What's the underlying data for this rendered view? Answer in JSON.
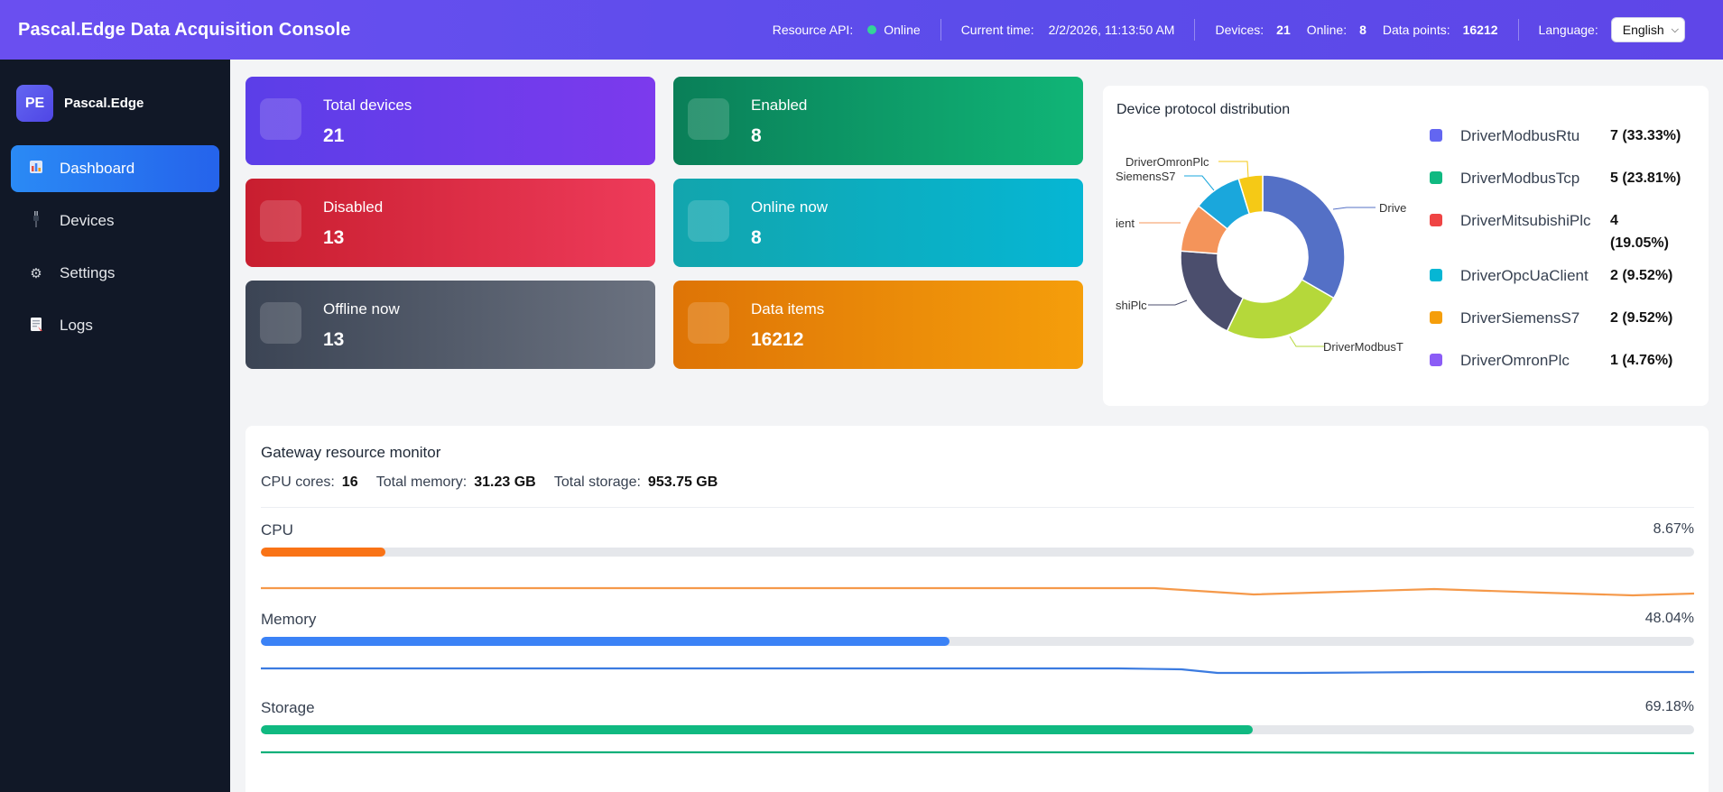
{
  "header": {
    "title": "Pascal.Edge Data Acquisition Console",
    "resource_api_label": "Resource API:",
    "resource_api_status": "Online",
    "current_time_label": "Current time:",
    "current_time_value": "2/2/2026, 11:13:50 AM",
    "devices_label": "Devices:",
    "devices_value": "21",
    "online_label": "Online:",
    "online_value": "8",
    "data_points_label": "Data points:",
    "data_points_value": "16212",
    "language_label": "Language:",
    "language_value": "English"
  },
  "sidebar": {
    "brand_logo": "PE",
    "brand_name": "Pascal.Edge",
    "items": [
      {
        "label": "Dashboard",
        "icon": "bar-chart-icon",
        "active": true
      },
      {
        "label": "Devices",
        "icon": "plug-icon",
        "active": false
      },
      {
        "label": "Settings",
        "icon": "gear-icon",
        "active": false
      },
      {
        "label": "Logs",
        "icon": "document-icon",
        "active": false
      }
    ]
  },
  "stats": {
    "total_devices": {
      "label": "Total devices",
      "value": "21"
    },
    "enabled": {
      "label": "Enabled",
      "value": "8"
    },
    "disabled": {
      "label": "Disabled",
      "value": "13"
    },
    "online_now": {
      "label": "Online now",
      "value": "8"
    },
    "offline_now": {
      "label": "Offline now",
      "value": "13"
    },
    "data_items": {
      "label": "Data items",
      "value": "16212"
    }
  },
  "protocol": {
    "title": "Device protocol distribution",
    "legend": [
      {
        "name": "DriverModbusRtu",
        "count": "7 (33.33%)",
        "color": "#6366f1"
      },
      {
        "name": "DriverModbusTcp",
        "count": "5 (23.81%)",
        "color": "#10b981"
      },
      {
        "name": "DriverMitsubishiPlc",
        "count": "4 (19.05%)",
        "color": "#ef4444"
      },
      {
        "name": "DriverOpcUaClient",
        "count": "2 (9.52%)",
        "color": "#06b6d4"
      },
      {
        "name": "DriverSiemensS7",
        "count": "2 (9.52%)",
        "color": "#f59e0b"
      },
      {
        "name": "DriverOmronPlc",
        "count": "1 (4.76%)",
        "color": "#8b5cf6"
      }
    ],
    "pie_labels": {
      "rtu": "Drive",
      "tcp": "DriverModbusT",
      "mitsu": "shiPlc",
      "opc": "ient",
      "siemens": "SiemensS7",
      "omron": "DriverOmronPlc"
    }
  },
  "chart_data": {
    "type": "pie",
    "categories": [
      "DriverModbusRtu",
      "DriverModbusTcp",
      "DriverMitsubishiPlc",
      "DriverOpcUaClient",
      "DriverSiemensS7",
      "DriverOmronPlc"
    ],
    "values": [
      7,
      5,
      4,
      2,
      2,
      1
    ],
    "slice_colors": [
      "#5470c6",
      "#b5d83a",
      "#4b4e6d",
      "#f4945a",
      "#1aa7dc",
      "#f5c916"
    ]
  },
  "resources": {
    "title": "Gateway resource monitor",
    "cpu_cores_label": "CPU cores:",
    "cpu_cores_value": "16",
    "total_memory_label": "Total memory:",
    "total_memory_value": "31.23 GB",
    "total_storage_label": "Total storage:",
    "total_storage_value": "953.75 GB",
    "metrics": [
      {
        "label": "CPU",
        "percent_text": "8.67%",
        "percent": 8.67,
        "color": "#f97316",
        "line_color": "#f5994a",
        "history": [
          0.5,
          0.5,
          0.5,
          0.5,
          0.5,
          0.5,
          0.5,
          0.5,
          0.5,
          0.5,
          0.5,
          0.5,
          0.5,
          0.5,
          0.5,
          0.5,
          0.5,
          0.5,
          0.5,
          0.5,
          0.5,
          0.5,
          0.5,
          0.5,
          0.5,
          0.5,
          0.5,
          0.5,
          0.5,
          0.5,
          0.5,
          0.5,
          0.5,
          0.5,
          0.5,
          0.5,
          0.5,
          0.5,
          0.5,
          0.5,
          0.5,
          0.5,
          0.5,
          0.5,
          0.5,
          0.5,
          0.5,
          0.5,
          0.5,
          0.5,
          0.5,
          0.5,
          0.5,
          0.5,
          0.5,
          0.5,
          0.5,
          0.5,
          0.5,
          0.5,
          0.5,
          0.5,
          0.5,
          0.5,
          0.5,
          0.5,
          0.5,
          0.5,
          0.5,
          0.5,
          0.5,
          0.5,
          0.5,
          0.5,
          0.5,
          0.5,
          0.5,
          0.5,
          0.5,
          0.5,
          0.5,
          0.5,
          0.5,
          0.5,
          0.5,
          0.5,
          0.5,
          0.5,
          0.5,
          0.5,
          0.5,
          0.5,
          0.5,
          0.5,
          0.5,
          0.5,
          0.5,
          0.5,
          0.5,
          0.5,
          0.5,
          0.5,
          0.5,
          0.5,
          0.5,
          0.5,
          0.5,
          0.5,
          0.5,
          0.5,
          0.5,
          0.5,
          0.5,
          0.5,
          0.5,
          0.5,
          0.5,
          0.5,
          0.5,
          0.5,
          0.5,
          0.5,
          0.5,
          0.5,
          0.5,
          0.5,
          0.5,
          0.5,
          0.5,
          0.5,
          0.5,
          0.5,
          0.5,
          0.5,
          0.5,
          0.5,
          0.5,
          0.5,
          0.5,
          0.5,
          0.5,
          0.5,
          0.5,
          0.5,
          0.5,
          0.5,
          0.5,
          0.5,
          0.5,
          0.5,
          0.5,
          0.5,
          0.5,
          0.5,
          0.5
        ]
      },
      {
        "label": "Memory",
        "percent_text": "48.04%",
        "percent": 48.04,
        "color": "#3b82f6",
        "line_color": "#3b7be0"
      },
      {
        "label": "Storage",
        "percent_text": "69.18%",
        "percent": 69.18,
        "color": "#10b981",
        "line_color": "#10b07a"
      }
    ]
  }
}
